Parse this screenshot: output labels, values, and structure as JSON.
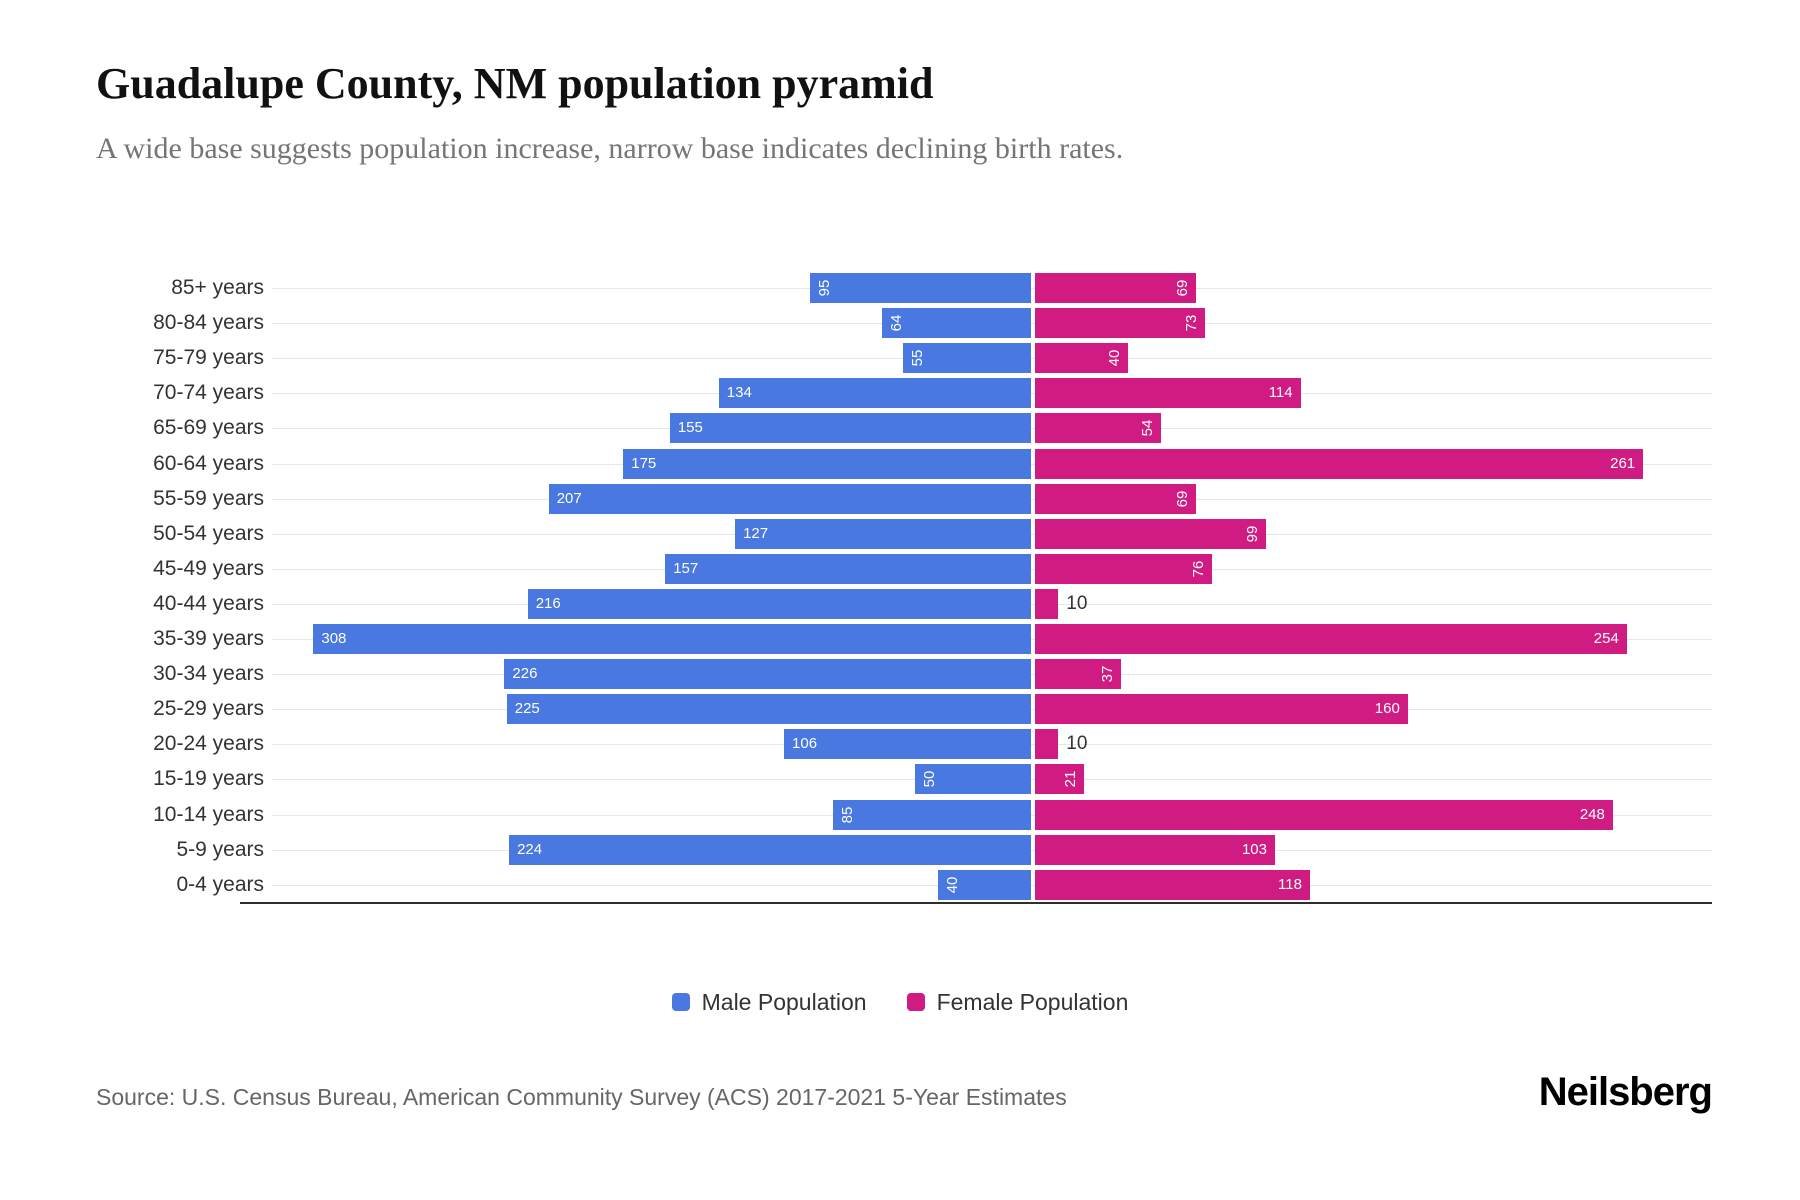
{
  "header": {
    "title": "Guadalupe County, NM population pyramid",
    "subtitle": "A wide base suggests population increase, narrow base indicates declining birth rates."
  },
  "chart_data": {
    "type": "bar",
    "variant": "population-pyramid",
    "orientation": "horizontal",
    "categories": [
      "85+ years",
      "80-84 years",
      "75-79 years",
      "70-74 years",
      "65-69 years",
      "60-64 years",
      "55-59 years",
      "50-54 years",
      "45-49 years",
      "40-44 years",
      "35-39 years",
      "30-34 years",
      "25-29 years",
      "20-24 years",
      "15-19 years",
      "10-14 years",
      "5-9 years",
      "0-4 years"
    ],
    "series": [
      {
        "name": "Male Population",
        "color": "#4878e0",
        "direction": "left",
        "values": [
          95,
          64,
          55,
          134,
          155,
          175,
          207,
          127,
          157,
          216,
          308,
          226,
          225,
          106,
          50,
          85,
          224,
          40
        ]
      },
      {
        "name": "Female Population",
        "color": "#d01c82",
        "direction": "right",
        "values": [
          69,
          73,
          40,
          114,
          54,
          261,
          69,
          99,
          76,
          10,
          254,
          37,
          160,
          10,
          21,
          248,
          103,
          118
        ]
      }
    ],
    "x_axis_max_per_side": 320,
    "grid": true,
    "legend_position": "bottom",
    "value_labels": "at-outer-bar-ends, rotated when value < 100, outside bar in dark text when value <= 12"
  },
  "footer": {
    "source": "Source: U.S. Census Bureau, American Community Survey (ACS) 2017-2021 5-Year Estimates",
    "brand": "Neilsberg"
  },
  "colors": {
    "male": "#4878e0",
    "female": "#d01c82",
    "grid": "#e7e7e7",
    "axis": "#2e2e2e",
    "title": "#111111",
    "subtitle": "#757575",
    "category_label": "#333333",
    "value_label_inside": "#ffffff",
    "value_label_outside": "#333333",
    "source": "#666666"
  }
}
